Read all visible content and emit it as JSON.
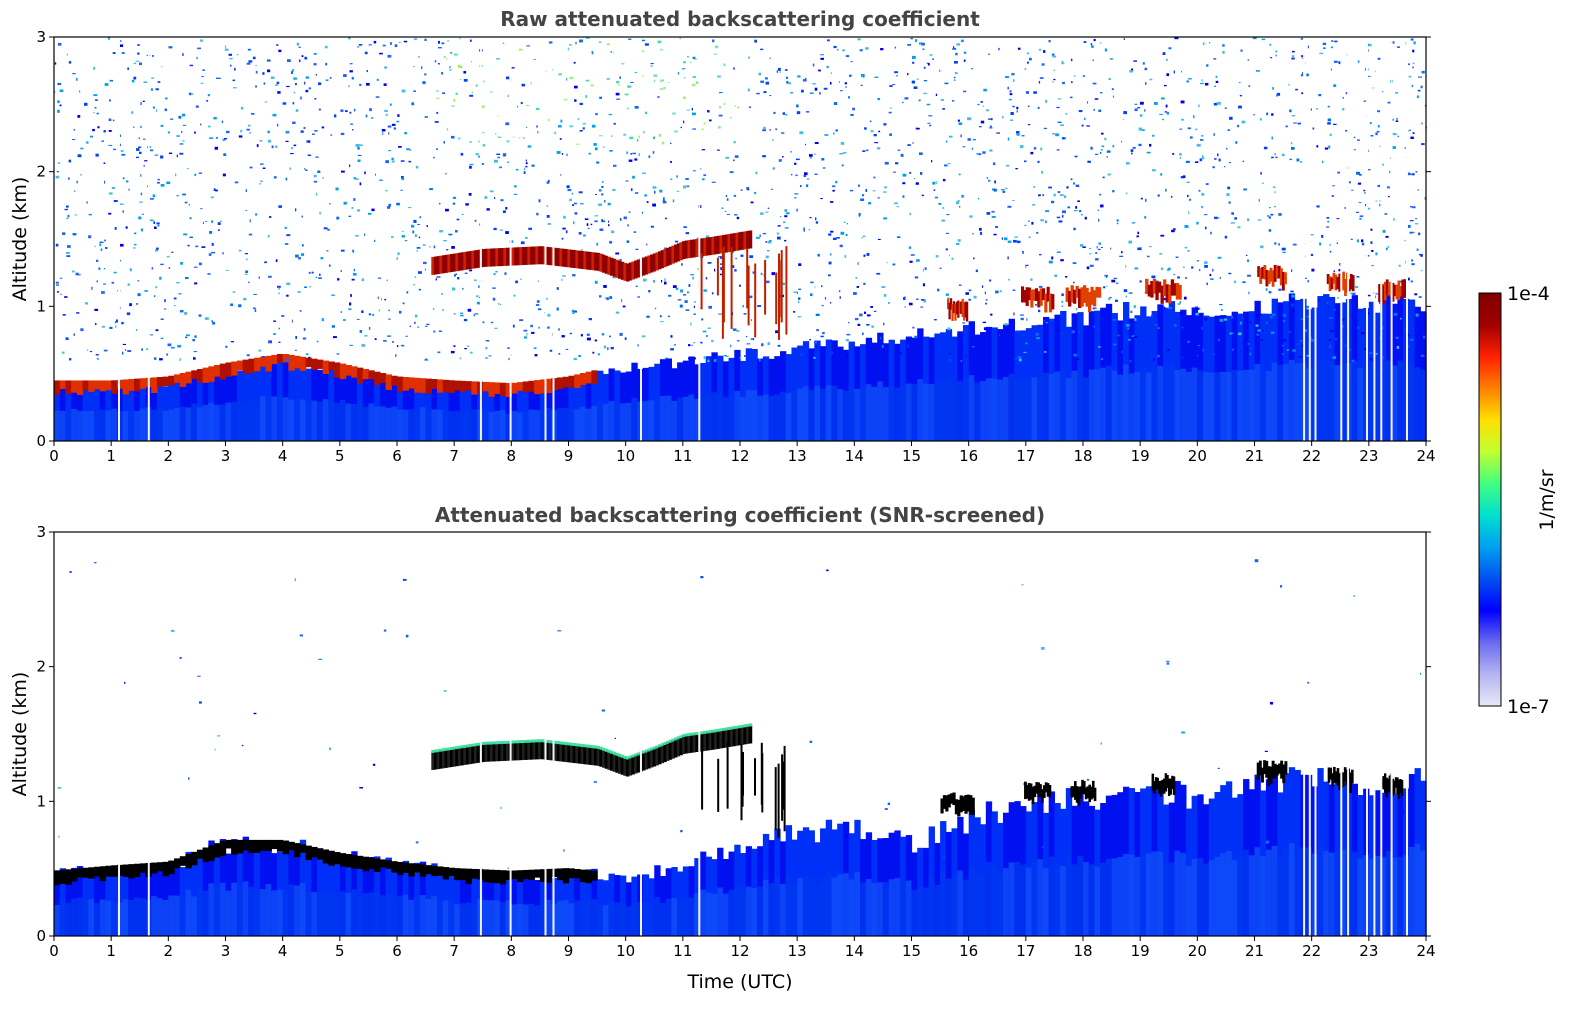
{
  "chart_data": [
    {
      "type": "heatmap",
      "title": "Raw attenuated backscattering coefficient",
      "xlabel": "",
      "ylabel": "Altitude (km)",
      "xlim": [
        0,
        24
      ],
      "ylim": [
        0,
        3
      ],
      "x_ticks": [
        "0",
        "1",
        "2",
        "3",
        "4",
        "5",
        "6",
        "7",
        "8",
        "9",
        "10",
        "11",
        "12",
        "13",
        "14",
        "15",
        "16",
        "17",
        "18",
        "19",
        "20",
        "21",
        "22",
        "23",
        "24"
      ],
      "y_ticks": [
        "0",
        "1",
        "2",
        "3"
      ],
      "features": {
        "boundary_layer_top_km": [
          [
            0,
            0.42
          ],
          [
            1,
            0.42
          ],
          [
            2,
            0.45
          ],
          [
            3,
            0.55
          ],
          [
            4,
            0.62
          ],
          [
            5,
            0.55
          ],
          [
            6,
            0.45
          ],
          [
            7,
            0.42
          ],
          [
            8,
            0.4
          ],
          [
            9,
            0.45
          ],
          [
            10,
            0.55
          ],
          [
            11,
            0.6
          ],
          [
            12,
            0.65
          ],
          [
            13,
            0.7
          ],
          [
            14,
            0.75
          ],
          [
            15,
            0.8
          ],
          [
            16,
            0.85
          ],
          [
            17,
            0.9
          ],
          [
            18,
            0.95
          ],
          [
            19,
            1.0
          ],
          [
            20,
            1.0
          ],
          [
            21,
            1.05
          ],
          [
            22,
            1.05
          ],
          [
            23,
            1.05
          ],
          [
            24,
            1.05
          ]
        ],
        "cloud_layer_km": [
          [
            6.6,
            1.3
          ],
          [
            7.5,
            1.36
          ],
          [
            8.5,
            1.38
          ],
          [
            9.5,
            1.33
          ],
          [
            10,
            1.25
          ],
          [
            10.5,
            1.33
          ],
          [
            11,
            1.42
          ],
          [
            11.5,
            1.45
          ],
          [
            12.2,
            1.5
          ]
        ],
        "low_clouds_km": [
          [
            15.8,
            0.98
          ],
          [
            17.2,
            1.06
          ],
          [
            18.0,
            1.07
          ],
          [
            19.4,
            1.12
          ],
          [
            21.3,
            1.22
          ],
          [
            22.5,
            1.17
          ],
          [
            23.4,
            1.12
          ]
        ],
        "data_gap_times_utc": [
          1.12,
          1.64,
          7.45,
          7.97,
          8.58,
          8.72,
          10.25,
          11.27,
          21.85,
          21.95,
          22.05,
          22.5,
          22.62,
          22.95,
          23.08,
          23.2,
          23.38,
          23.65
        ]
      }
    },
    {
      "type": "heatmap",
      "title": "Attenuated backscattering coefficient (SNR-screened)",
      "xlabel": "Time (UTC)",
      "ylabel": "Altitude (km)",
      "xlim": [
        0,
        24
      ],
      "ylim": [
        0,
        3
      ],
      "x_ticks": [
        "0",
        "1",
        "2",
        "3",
        "4",
        "5",
        "6",
        "7",
        "8",
        "9",
        "10",
        "11",
        "12",
        "13",
        "14",
        "15",
        "16",
        "17",
        "18",
        "19",
        "20",
        "21",
        "22",
        "23",
        "24"
      ],
      "y_ticks": [
        "0",
        "1",
        "2",
        "3"
      ],
      "screened_signal_top_km": [
        [
          0,
          0.48
        ],
        [
          1,
          0.52
        ],
        [
          2,
          0.55
        ],
        [
          3,
          0.72
        ],
        [
          4,
          0.72
        ],
        [
          5,
          0.62
        ],
        [
          6,
          0.55
        ],
        [
          7,
          0.5
        ],
        [
          8,
          0.48
        ],
        [
          9,
          0.5
        ],
        [
          10,
          0.45
        ],
        [
          11,
          0.55
        ],
        [
          12,
          0.7
        ],
        [
          13,
          0.8
        ],
        [
          14,
          0.85
        ],
        [
          15,
          0.72
        ],
        [
          16,
          0.9
        ],
        [
          17,
          1.05
        ],
        [
          18,
          1.08
        ],
        [
          19,
          1.1
        ],
        [
          20,
          1.1
        ],
        [
          21,
          1.2
        ],
        [
          22,
          1.2
        ],
        [
          23,
          1.18
        ],
        [
          24,
          1.2
        ]
      ]
    }
  ],
  "colorbar": {
    "label": "1/m/sr",
    "max_label": "1e-4",
    "min_label": "1e-7",
    "scale": "log",
    "colors": [
      "#e8e8f8",
      "#b4b4f0",
      "#6a6af0",
      "#0000ff",
      "#0050f0",
      "#00a0f0",
      "#00e0d0",
      "#40ff80",
      "#c0ff30",
      "#ffe000",
      "#ff8000",
      "#ff2000",
      "#a00000",
      "#800000"
    ]
  }
}
